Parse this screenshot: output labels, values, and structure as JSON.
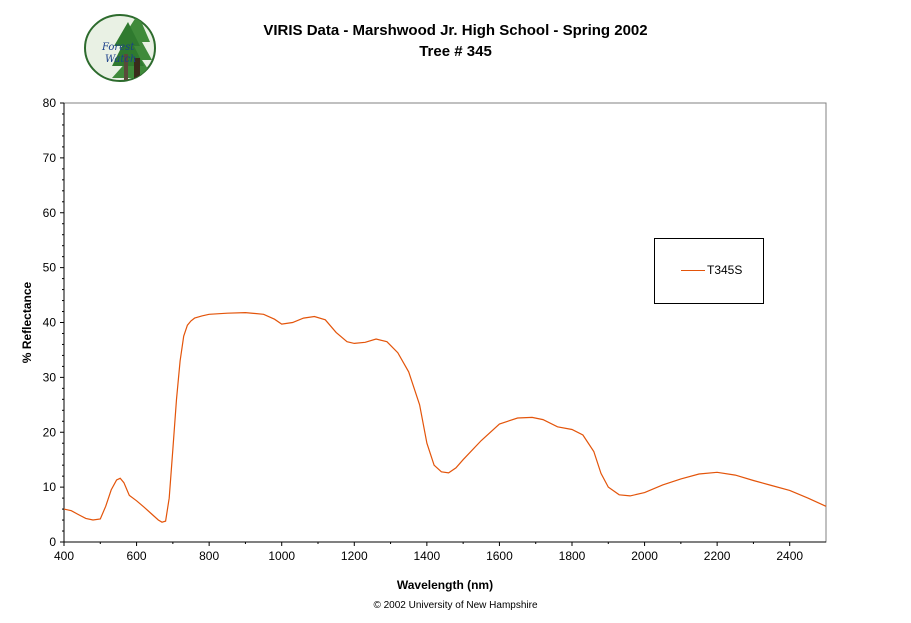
{
  "title": "VIRIS Data - Marshwood Jr. High School - Spring 2002",
  "subtitle": "Tree # 345",
  "logo": {
    "line1": "Forest",
    "line2": "Watch"
  },
  "copyright": "© 2002 University of New Hampshire",
  "colors": {
    "series": "#e3540a",
    "logo_green": "#3f8a3a",
    "logo_ring": "#2d6b2d"
  },
  "chart_data": {
    "type": "line",
    "xlabel": "Wavelength (nm)",
    "ylabel": "% Reflectance",
    "xlim": [
      400,
      2500
    ],
    "ylim": [
      0,
      80
    ],
    "xticks": [
      400,
      600,
      800,
      1000,
      1200,
      1400,
      1600,
      1800,
      2000,
      2200,
      2400
    ],
    "yticks": [
      0,
      10,
      20,
      30,
      40,
      50,
      60,
      70,
      80
    ],
    "legend_position": "right",
    "grid": false,
    "series": [
      {
        "name": "T345S",
        "x": [
          400,
          420,
          440,
          460,
          480,
          500,
          515,
          530,
          545,
          555,
          565,
          580,
          600,
          620,
          640,
          660,
          670,
          680,
          690,
          700,
          710,
          720,
          730,
          740,
          750,
          760,
          780,
          800,
          850,
          900,
          950,
          980,
          1000,
          1030,
          1060,
          1090,
          1120,
          1150,
          1180,
          1200,
          1230,
          1260,
          1290,
          1320,
          1350,
          1380,
          1400,
          1420,
          1440,
          1460,
          1480,
          1500,
          1550,
          1600,
          1650,
          1690,
          1720,
          1760,
          1800,
          1830,
          1860,
          1880,
          1900,
          1930,
          1960,
          2000,
          2050,
          2100,
          2150,
          2200,
          2250,
          2300,
          2350,
          2400,
          2450,
          2500
        ],
        "y": [
          6.0,
          5.7,
          5.0,
          4.3,
          4.0,
          4.2,
          6.5,
          9.5,
          11.3,
          11.6,
          10.8,
          8.5,
          7.5,
          6.4,
          5.2,
          4.0,
          3.6,
          3.8,
          8.0,
          17.0,
          26.0,
          33.0,
          37.5,
          39.5,
          40.3,
          40.8,
          41.2,
          41.5,
          41.7,
          41.8,
          41.5,
          40.6,
          39.7,
          40.0,
          40.8,
          41.1,
          40.5,
          38.2,
          36.5,
          36.2,
          36.4,
          37.0,
          36.5,
          34.5,
          31.0,
          25.0,
          18.0,
          14.0,
          12.8,
          12.6,
          13.5,
          15.0,
          18.5,
          21.5,
          22.6,
          22.7,
          22.3,
          21.0,
          20.5,
          19.5,
          16.5,
          12.5,
          10.0,
          8.6,
          8.4,
          9.0,
          10.4,
          11.5,
          12.4,
          12.7,
          12.2,
          11.2,
          10.3,
          9.4,
          8.0,
          6.5
        ]
      }
    ]
  }
}
